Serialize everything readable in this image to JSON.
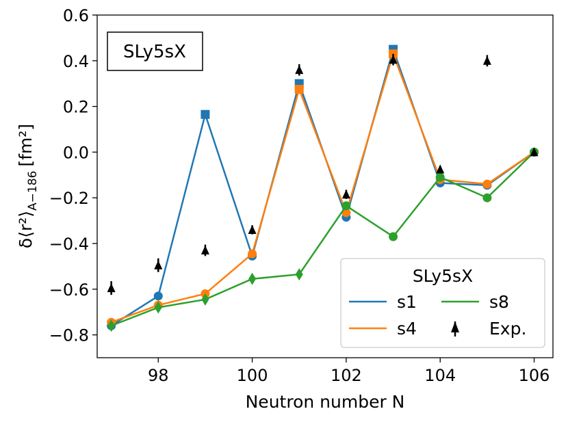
{
  "chart_data": {
    "type": "line",
    "title_box": "SLy5sX",
    "xlabel": "Neutron number N",
    "ylabel_main": "δ⟨r²⟩",
    "ylabel_sub": "A−186",
    "ylabel_unit": "[fm²]",
    "xlim": [
      96.7,
      106.4
    ],
    "ylim": [
      -0.9,
      0.6
    ],
    "xticks": [
      98,
      100,
      102,
      104,
      106
    ],
    "xtick_labels": [
      "98",
      "100",
      "102",
      "104",
      "106"
    ],
    "yticks": [
      -0.8,
      -0.6,
      -0.4,
      -0.2,
      0.0,
      0.2,
      0.4,
      0.6
    ],
    "ytick_labels": [
      "−0.8",
      "−0.6",
      "−0.4",
      "−0.2",
      "0.0",
      "0.2",
      "0.4",
      "0.6"
    ],
    "legend_title": "SLy5sX",
    "legend_position": "bottom-right",
    "series": [
      {
        "name": "s1",
        "color": "#1f77b4",
        "x": [
          97,
          98,
          99,
          100,
          101,
          102,
          103,
          104,
          105,
          106
        ],
        "y": [
          -0.76,
          -0.63,
          0.165,
          -0.455,
          0.3,
          -0.285,
          0.45,
          -0.135,
          -0.145,
          0.0
        ],
        "markers": [
          "circle",
          "circle",
          "square",
          "circle",
          "square",
          "circle",
          "square",
          "circle",
          "circle",
          "circle"
        ]
      },
      {
        "name": "s4",
        "color": "#ff7f0e",
        "x": [
          97,
          98,
          99,
          100,
          101,
          102,
          103,
          104,
          105,
          106
        ],
        "y": [
          -0.745,
          -0.67,
          -0.62,
          -0.445,
          0.275,
          -0.265,
          0.43,
          -0.12,
          -0.14,
          0.0
        ],
        "markers": [
          "circle",
          "circle",
          "circle",
          "circle",
          "square",
          "circle",
          "square",
          "circle",
          "circle",
          "circle"
        ]
      },
      {
        "name": "s8",
        "color": "#2ca02c",
        "x": [
          97,
          98,
          99,
          100,
          101,
          102,
          103,
          104,
          105,
          106
        ],
        "y": [
          -0.76,
          -0.68,
          -0.645,
          -0.555,
          -0.535,
          -0.235,
          -0.37,
          -0.11,
          -0.2,
          0.0
        ],
        "markers": [
          "diamond",
          "diamond",
          "diamond",
          "diamond",
          "diamond",
          "circle",
          "circle",
          "circle",
          "circle",
          "circle"
        ]
      }
    ],
    "experiment": {
      "name": "Exp.",
      "color": "#000000",
      "x": [
        97,
        98,
        99,
        100,
        101,
        102,
        103,
        104,
        105,
        106
      ],
      "y": [
        -0.595,
        -0.495,
        -0.43,
        -0.34,
        0.36,
        -0.185,
        0.405,
        -0.075,
        0.4,
        0.0
      ],
      "err": [
        0.03,
        0.03,
        0.025,
        0.02,
        0.025,
        0.02,
        0.025,
        0.015,
        0.025,
        0.0
      ]
    }
  }
}
